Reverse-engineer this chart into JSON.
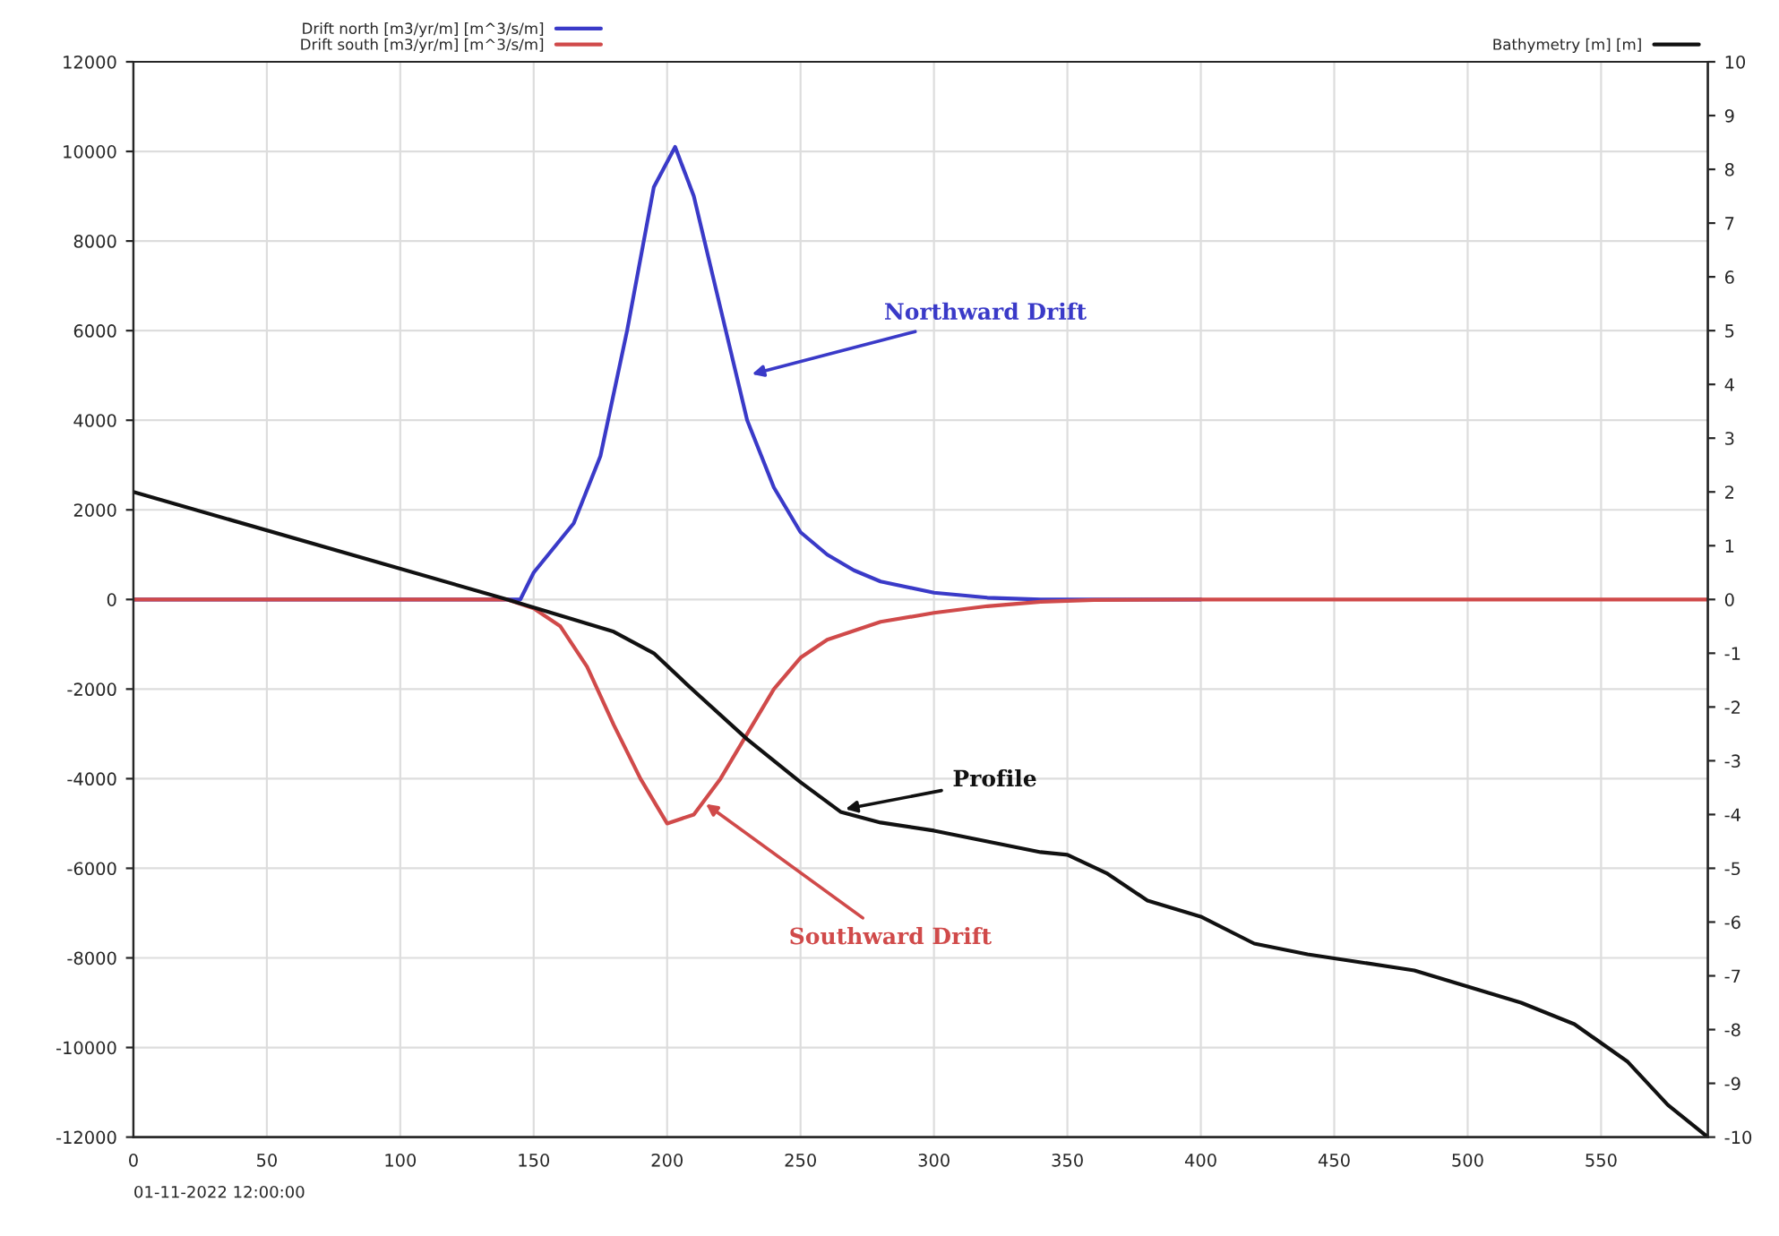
{
  "chart_data": {
    "type": "line",
    "xlim": [
      0,
      590
    ],
    "xticks": [
      0,
      50,
      100,
      150,
      200,
      250,
      300,
      350,
      400,
      450,
      500,
      550
    ],
    "ylim": [
      -12000,
      12000
    ],
    "yticks": [
      -12000,
      -10000,
      -8000,
      -6000,
      -4000,
      -2000,
      0,
      2000,
      4000,
      6000,
      8000,
      10000,
      12000
    ],
    "y2lim": [
      -10,
      10
    ],
    "y2ticks": [
      -10,
      -9,
      -8,
      -7,
      -6,
      -5,
      -4,
      -3,
      -2,
      -1,
      0,
      1,
      2,
      3,
      4,
      5,
      6,
      7,
      8,
      9,
      10
    ],
    "grid": true,
    "legend": "top",
    "line_style": "solid",
    "marker": "none",
    "series": [
      {
        "name": "Drift north [m3/yr/m] [m^3/s/m]",
        "color": "#3a3ac8",
        "x": [
          0,
          140,
          145,
          150,
          165,
          175,
          185,
          195,
          203,
          210,
          220,
          230,
          240,
          250,
          260,
          270,
          280,
          300,
          320,
          340,
          400
        ],
        "values": [
          0,
          0,
          0,
          600,
          1700,
          3200,
          6000,
          9200,
          10100,
          9000,
          6500,
          4000,
          2500,
          1500,
          1000,
          650,
          400,
          150,
          40,
          0,
          0
        ]
      },
      {
        "name": "Drift south [m3/yr/m] [m^3/s/m]",
        "color": "#d04a4a",
        "x": [
          0,
          140,
          150,
          160,
          170,
          180,
          190,
          200,
          210,
          220,
          230,
          240,
          250,
          260,
          280,
          300,
          320,
          340,
          360,
          400,
          590
        ],
        "values": [
          0,
          0,
          -200,
          -600,
          -1500,
          -2800,
          -4000,
          -5000,
          -4800,
          -4000,
          -3000,
          -2000,
          -1300,
          -900,
          -500,
          -300,
          -150,
          -50,
          -10,
          0,
          0
        ]
      },
      {
        "name": "Bathymetry [m] [m]",
        "color": "#111111",
        "axis": "y2",
        "x": [
          0,
          140,
          160,
          180,
          195,
          210,
          230,
          250,
          265,
          280,
          300,
          320,
          340,
          350,
          365,
          380,
          400,
          420,
          440,
          460,
          480,
          500,
          520,
          540,
          560,
          575,
          590
        ],
        "values": [
          2.0,
          0,
          -0.3,
          -0.6,
          -1.0,
          -1.7,
          -2.6,
          -3.4,
          -3.95,
          -4.15,
          -4.3,
          -4.5,
          -4.7,
          -4.75,
          -5.1,
          -5.6,
          -5.9,
          -6.4,
          -6.6,
          -6.75,
          -6.9,
          -7.2,
          -7.5,
          -7.9,
          -8.6,
          -9.4,
          -10
        ]
      }
    ],
    "annotations": [
      {
        "text": "Northward Drift",
        "x": 230,
        "y": 5000
      },
      {
        "text": "Profile",
        "x": 265,
        "y": -4700
      },
      {
        "text": "Southward Drift",
        "x": 213,
        "y": -4500
      },
      "01-11-2022 12:00:00"
    ]
  }
}
